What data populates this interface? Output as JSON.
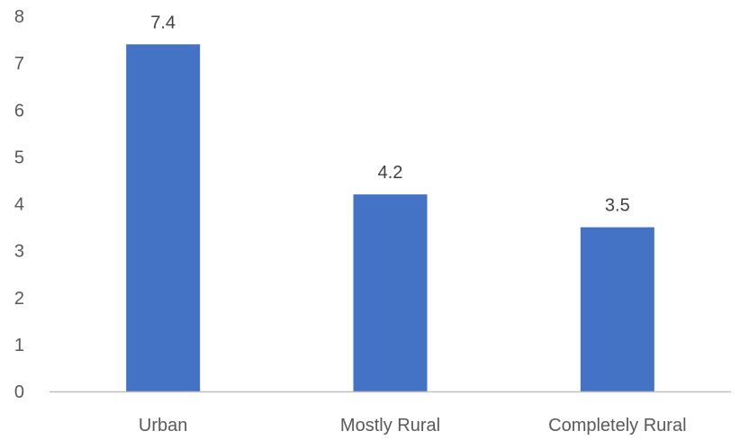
{
  "chart_data": {
    "type": "bar",
    "categories": [
      "Urban",
      "Mostly Rural",
      "Completely Rural"
    ],
    "values": [
      7.4,
      4.2,
      3.5
    ],
    "data_labels": [
      "7.4",
      "4.2",
      "3.5"
    ],
    "y_ticks": [
      0,
      1,
      2,
      3,
      4,
      5,
      6,
      7,
      8
    ],
    "ylim": [
      0,
      8
    ],
    "grid": false,
    "legend": "none",
    "title": "",
    "xlabel": "",
    "ylabel": "",
    "colors": {
      "bar": "#4472C4",
      "axis": "#BFBFBF"
    }
  }
}
